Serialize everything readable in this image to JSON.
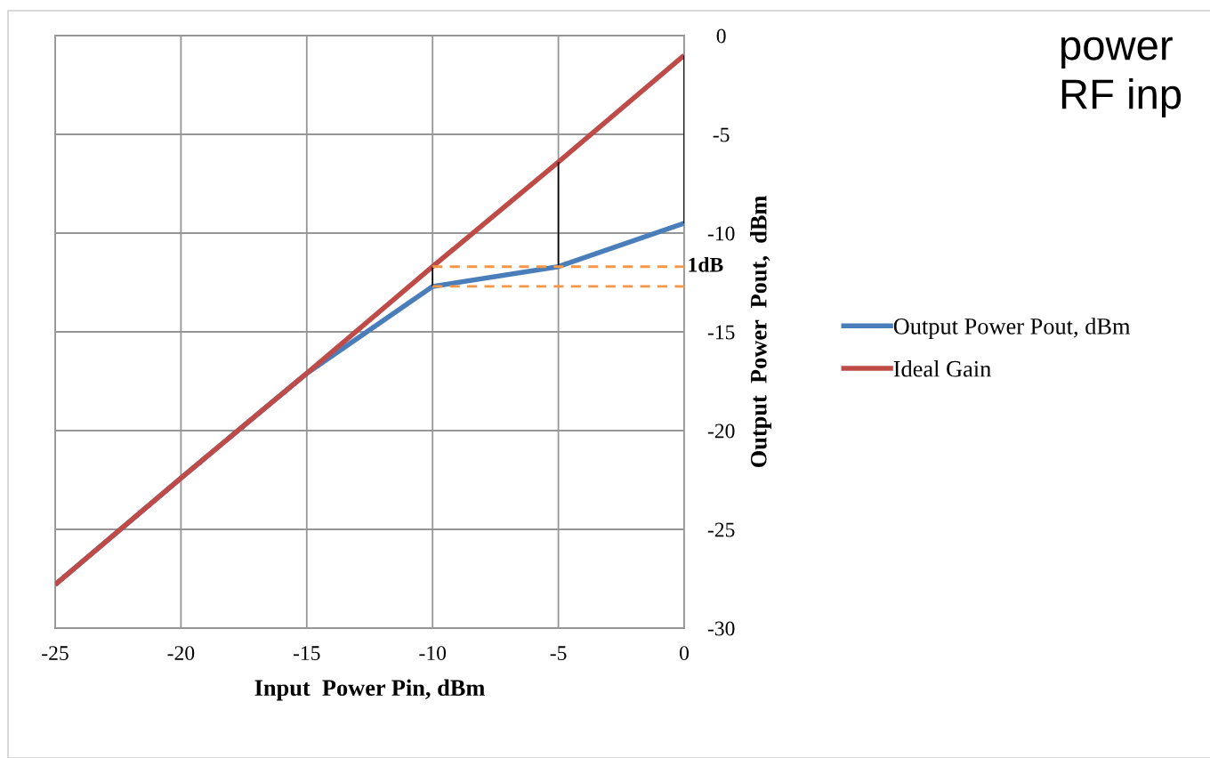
{
  "chart_data": {
    "type": "line",
    "xlabel": "Input  Power Pin, dBm",
    "ylabel": "Output  Power  Pout,  dBm",
    "x": [
      -25,
      -20,
      -15,
      -10,
      -5,
      0
    ],
    "series": [
      {
        "name": "Output Power Pout, dBm",
        "color": "#4a7ebb",
        "values": [
          -27.8,
          -22.4,
          -17.1,
          -12.7,
          -11.7,
          -9.5
        ]
      },
      {
        "name": "Ideal Gain",
        "color": "#be4b48",
        "values": [
          -27.8,
          -22.4,
          -17.1,
          -11.7,
          -6.4,
          -1.0
        ]
      },
      {
        "color": "#000000",
        "x": [
          -10,
          -10
        ],
        "values": [
          -11.7,
          -12.7
        ]
      },
      {
        "color": "#000000",
        "x": [
          -5,
          -5
        ],
        "values": [
          -6.4,
          -11.7
        ]
      },
      {
        "color": "#000000",
        "x": [
          0,
          0
        ],
        "values": [
          -1.0,
          -9.5
        ]
      },
      {
        "color": "#f79646",
        "x": [
          -10,
          0
        ],
        "values": [
          -11.7,
          -11.7
        ],
        "line_style": "dashed"
      },
      {
        "color": "#f79646",
        "x": [
          -10,
          0
        ],
        "values": [
          -12.7,
          -12.7
        ],
        "line_style": "dashed"
      }
    ],
    "xlim": [
      -25,
      0
    ],
    "xticks": [
      -25,
      -20,
      -15,
      -10,
      -5,
      0
    ],
    "ylim": [
      -30,
      0
    ],
    "yticks": [
      -30,
      -25,
      -20,
      -15,
      -10,
      -5,
      0
    ],
    "grid": true,
    "legend": "right",
    "marker": "none",
    "line_style": "solid",
    "annotations": [
      "1dB",
      "power",
      "RF inp"
    ]
  }
}
